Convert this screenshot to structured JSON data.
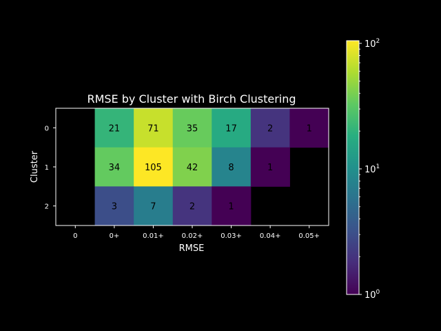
{
  "chart_data": {
    "type": "heatmap",
    "title": "RMSE by Cluster with Birch Clustering",
    "xlabel": "RMSE",
    "ylabel": "Cluster",
    "x_categories": [
      "0",
      "0+",
      "0.01+",
      "0.02+",
      "0.03+",
      "0.04+",
      "0.05+"
    ],
    "y_categories": [
      "0",
      "1",
      "2"
    ],
    "values": [
      [
        null,
        21,
        71,
        35,
        17,
        2,
        1
      ],
      [
        null,
        34,
        105,
        42,
        8,
        1,
        null
      ],
      [
        null,
        3,
        7,
        2,
        1,
        null,
        null
      ]
    ],
    "colorscale": "viridis",
    "color_scale_type": "log",
    "color_range": [
      1,
      105
    ],
    "colorbar": {
      "ticks": [
        {
          "value": 1,
          "base": "10",
          "exp": "0"
        },
        {
          "value": 10,
          "base": "10",
          "exp": "1"
        },
        {
          "value": 100,
          "base": "10",
          "exp": "2"
        }
      ]
    },
    "background_color": "#000000",
    "text_color": "#ffffff"
  }
}
